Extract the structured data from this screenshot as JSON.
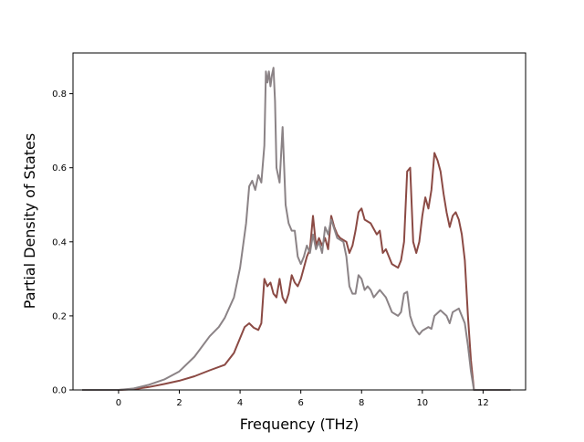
{
  "chart_data": {
    "type": "line",
    "title": "",
    "xlabel": "Frequency (THz)",
    "ylabel": "Partial Density of States",
    "xlim": [
      -1.5,
      13.4
    ],
    "ylim": [
      0.0,
      0.91
    ],
    "xticks": [
      0,
      2,
      4,
      6,
      8,
      10,
      12
    ],
    "yticks": [
      0.0,
      0.2,
      0.4,
      0.6,
      0.8
    ],
    "xtick_labels": [
      "0",
      "2",
      "4",
      "6",
      "8",
      "10",
      "12"
    ],
    "ytick_labels": [
      "0.0",
      "0.2",
      "0.4",
      "0.6",
      "0.8"
    ],
    "grid": false,
    "legend": "none",
    "series": [
      {
        "color": "#8b4a44",
        "points": [
          [
            -1.2,
            0.0
          ],
          [
            0.0,
            0.0
          ],
          [
            0.5,
            0.002
          ],
          [
            1.0,
            0.008
          ],
          [
            1.5,
            0.016
          ],
          [
            2.0,
            0.025
          ],
          [
            2.5,
            0.037
          ],
          [
            3.0,
            0.053
          ],
          [
            3.5,
            0.068
          ],
          [
            3.8,
            0.1
          ],
          [
            4.0,
            0.14
          ],
          [
            4.15,
            0.17
          ],
          [
            4.3,
            0.18
          ],
          [
            4.45,
            0.168
          ],
          [
            4.6,
            0.162
          ],
          [
            4.7,
            0.18
          ],
          [
            4.8,
            0.3
          ],
          [
            4.9,
            0.28
          ],
          [
            5.0,
            0.29
          ],
          [
            5.1,
            0.26
          ],
          [
            5.2,
            0.25
          ],
          [
            5.3,
            0.3
          ],
          [
            5.4,
            0.25
          ],
          [
            5.5,
            0.235
          ],
          [
            5.6,
            0.26
          ],
          [
            5.7,
            0.31
          ],
          [
            5.8,
            0.29
          ],
          [
            5.9,
            0.28
          ],
          [
            6.0,
            0.3
          ],
          [
            6.1,
            0.33
          ],
          [
            6.2,
            0.36
          ],
          [
            6.3,
            0.38
          ],
          [
            6.4,
            0.47
          ],
          [
            6.5,
            0.39
          ],
          [
            6.6,
            0.41
          ],
          [
            6.7,
            0.39
          ],
          [
            6.8,
            0.41
          ],
          [
            6.9,
            0.38
          ],
          [
            7.0,
            0.47
          ],
          [
            7.1,
            0.44
          ],
          [
            7.2,
            0.42
          ],
          [
            7.3,
            0.41
          ],
          [
            7.5,
            0.4
          ],
          [
            7.6,
            0.37
          ],
          [
            7.7,
            0.39
          ],
          [
            7.8,
            0.43
          ],
          [
            7.9,
            0.48
          ],
          [
            8.0,
            0.49
          ],
          [
            8.1,
            0.46
          ],
          [
            8.2,
            0.455
          ],
          [
            8.3,
            0.45
          ],
          [
            8.5,
            0.42
          ],
          [
            8.6,
            0.43
          ],
          [
            8.7,
            0.37
          ],
          [
            8.8,
            0.38
          ],
          [
            8.9,
            0.36
          ],
          [
            9.0,
            0.34
          ],
          [
            9.2,
            0.33
          ],
          [
            9.3,
            0.35
          ],
          [
            9.4,
            0.4
          ],
          [
            9.5,
            0.59
          ],
          [
            9.6,
            0.6
          ],
          [
            9.7,
            0.4
          ],
          [
            9.8,
            0.37
          ],
          [
            9.9,
            0.4
          ],
          [
            10.0,
            0.47
          ],
          [
            10.1,
            0.52
          ],
          [
            10.2,
            0.49
          ],
          [
            10.3,
            0.54
          ],
          [
            10.4,
            0.64
          ],
          [
            10.5,
            0.62
          ],
          [
            10.6,
            0.59
          ],
          [
            10.7,
            0.53
          ],
          [
            10.8,
            0.48
          ],
          [
            10.9,
            0.44
          ],
          [
            11.0,
            0.47
          ],
          [
            11.1,
            0.48
          ],
          [
            11.2,
            0.46
          ],
          [
            11.3,
            0.42
          ],
          [
            11.4,
            0.35
          ],
          [
            11.5,
            0.2
          ],
          [
            11.6,
            0.08
          ],
          [
            11.7,
            0.0
          ],
          [
            12.9,
            0.0
          ]
        ]
      },
      {
        "color": "#8b8386",
        "points": [
          [
            -1.2,
            0.0
          ],
          [
            0.0,
            0.0
          ],
          [
            0.5,
            0.004
          ],
          [
            1.0,
            0.014
          ],
          [
            1.5,
            0.028
          ],
          [
            2.0,
            0.05
          ],
          [
            2.5,
            0.09
          ],
          [
            3.0,
            0.145
          ],
          [
            3.3,
            0.17
          ],
          [
            3.5,
            0.195
          ],
          [
            3.8,
            0.25
          ],
          [
            4.0,
            0.33
          ],
          [
            4.2,
            0.45
          ],
          [
            4.3,
            0.55
          ],
          [
            4.4,
            0.565
          ],
          [
            4.5,
            0.54
          ],
          [
            4.6,
            0.58
          ],
          [
            4.7,
            0.56
          ],
          [
            4.8,
            0.66
          ],
          [
            4.85,
            0.86
          ],
          [
            4.9,
            0.83
          ],
          [
            4.95,
            0.86
          ],
          [
            5.0,
            0.82
          ],
          [
            5.05,
            0.85
          ],
          [
            5.1,
            0.87
          ],
          [
            5.15,
            0.78
          ],
          [
            5.2,
            0.6
          ],
          [
            5.3,
            0.56
          ],
          [
            5.4,
            0.71
          ],
          [
            5.5,
            0.5
          ],
          [
            5.6,
            0.45
          ],
          [
            5.7,
            0.43
          ],
          [
            5.8,
            0.43
          ],
          [
            5.9,
            0.36
          ],
          [
            6.0,
            0.34
          ],
          [
            6.1,
            0.36
          ],
          [
            6.2,
            0.39
          ],
          [
            6.3,
            0.37
          ],
          [
            6.4,
            0.42
          ],
          [
            6.5,
            0.38
          ],
          [
            6.6,
            0.4
          ],
          [
            6.7,
            0.37
          ],
          [
            6.8,
            0.44
          ],
          [
            6.9,
            0.42
          ],
          [
            7.0,
            0.46
          ],
          [
            7.2,
            0.41
          ],
          [
            7.4,
            0.4
          ],
          [
            7.5,
            0.36
          ],
          [
            7.6,
            0.28
          ],
          [
            7.7,
            0.26
          ],
          [
            7.8,
            0.26
          ],
          [
            7.9,
            0.31
          ],
          [
            8.0,
            0.3
          ],
          [
            8.1,
            0.27
          ],
          [
            8.2,
            0.28
          ],
          [
            8.3,
            0.27
          ],
          [
            8.4,
            0.25
          ],
          [
            8.6,
            0.27
          ],
          [
            8.8,
            0.25
          ],
          [
            9.0,
            0.21
          ],
          [
            9.2,
            0.2
          ],
          [
            9.3,
            0.21
          ],
          [
            9.4,
            0.26
          ],
          [
            9.5,
            0.265
          ],
          [
            9.6,
            0.2
          ],
          [
            9.7,
            0.175
          ],
          [
            9.8,
            0.16
          ],
          [
            9.9,
            0.15
          ],
          [
            10.0,
            0.16
          ],
          [
            10.2,
            0.17
          ],
          [
            10.3,
            0.165
          ],
          [
            10.4,
            0.2
          ],
          [
            10.6,
            0.215
          ],
          [
            10.8,
            0.2
          ],
          [
            10.9,
            0.18
          ],
          [
            11.0,
            0.21
          ],
          [
            11.2,
            0.22
          ],
          [
            11.3,
            0.2
          ],
          [
            11.4,
            0.18
          ],
          [
            11.5,
            0.12
          ],
          [
            11.6,
            0.05
          ],
          [
            11.7,
            0.0
          ],
          [
            12.9,
            0.0
          ]
        ]
      }
    ]
  }
}
